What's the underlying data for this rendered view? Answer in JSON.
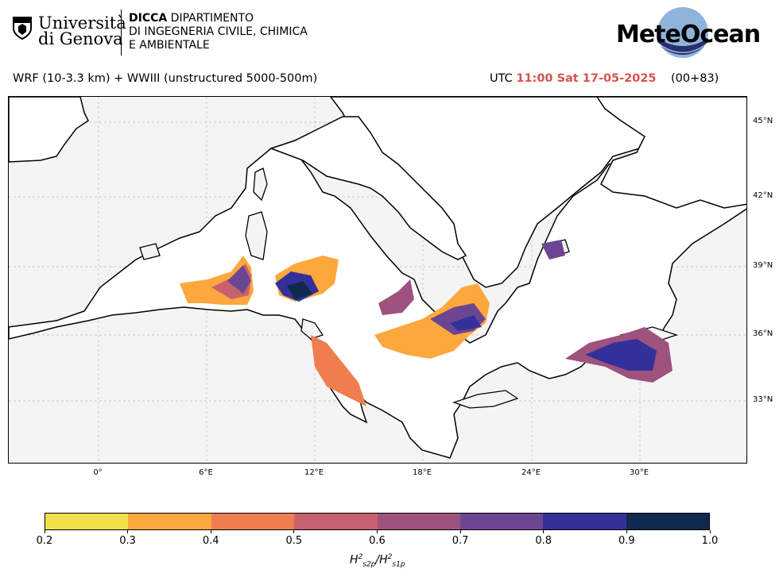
{
  "header": {
    "university_line1": "Università",
    "university_line2": "di Genova",
    "dept_bold": "DICCA",
    "dept_line1": "DIPARTIMENTO",
    "dept_line2": "DI INGEGNERIA CIVILE, CHIMICA",
    "dept_line3": "E AMBIENTALE",
    "brand": "MeteOcean"
  },
  "subtitle": {
    "model": "WRF (10-3.3 km) + WWIII (unstructured 5000-500m)",
    "utc_prefix": "UTC",
    "datetime": "11:00 Sat 17-05-2025",
    "run": "(00+83)"
  },
  "map": {
    "lat_labels": [
      "45°N",
      "42°N",
      "39°N",
      "36°N",
      "33°N"
    ],
    "lon_labels": [
      "0°",
      "6°E",
      "12°E",
      "18°E",
      "24°E",
      "30°E"
    ],
    "land_color": "#f4f4f4",
    "sea_color": "#ffffff"
  },
  "colorbar": {
    "ticks": [
      "0.2",
      "0.3",
      "0.4",
      "0.5",
      "0.6",
      "0.7",
      "0.8",
      "0.9",
      "1.0"
    ],
    "colors": [
      "#f1e04a",
      "#fca83c",
      "#ef7d50",
      "#c8616e",
      "#9e527e",
      "#6c4691",
      "#34309a",
      "#0f2a4e"
    ],
    "label_base": "H",
    "label_sup1": "2",
    "label_sub1": "s2p",
    "label_sup2": "2",
    "label_sub2": "s1p"
  }
}
